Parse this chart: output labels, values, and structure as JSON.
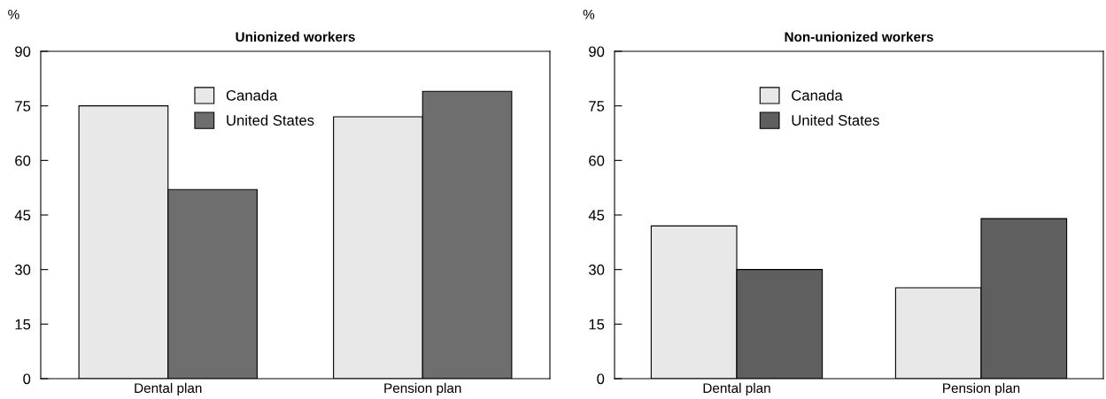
{
  "chart_data": [
    {
      "type": "bar",
      "title": "Unionized workers",
      "ylabel": "%",
      "categories": [
        "Dental plan",
        "Pension plan"
      ],
      "series": [
        {
          "name": "Canada",
          "color": "#e8e8e8",
          "values": [
            75,
            72
          ]
        },
        {
          "name": "United States",
          "color": "#6e6e6e",
          "values": [
            52,
            79
          ]
        }
      ],
      "ylim": [
        0,
        90
      ],
      "yticks": [
        0,
        15,
        30,
        45,
        60,
        75,
        90
      ],
      "legend": "top",
      "grid": false
    },
    {
      "type": "bar",
      "title": "Non-unionized workers",
      "ylabel": "%",
      "categories": [
        "Dental plan",
        "Pension plan"
      ],
      "series": [
        {
          "name": "Canada",
          "color": "#e8e8e8",
          "values": [
            42,
            25
          ]
        },
        {
          "name": "United States",
          "color": "#5f5f5f",
          "values": [
            30,
            44
          ]
        }
      ],
      "ylim": [
        0,
        90
      ],
      "yticks": [
        0,
        15,
        30,
        45,
        60,
        75,
        90
      ],
      "legend": "top",
      "grid": false
    }
  ]
}
